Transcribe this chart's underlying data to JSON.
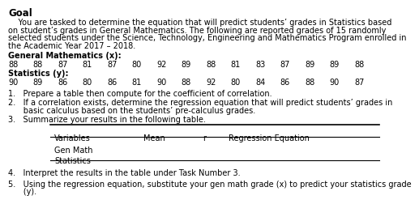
{
  "title": "Goal",
  "para1_indent": "    You are tasked to determine the equation that will predict students’ grades in Statistics based",
  "para1_lines": [
    "    You are tasked to determine the equation that will predict students’ grades in Statistics based",
    "on student’s grades in General Mathematics. The following are reported grades of 15 randomly",
    "selected students under the Science, Technology, Engineering and Mathematics Program enrolled in",
    "the Academic Year 2017 – 2018."
  ],
  "gm_label": "General Mathematics (x):",
  "gm_values": [
    "88",
    "88",
    "87",
    "81",
    "87",
    "80",
    "92",
    "89",
    "88",
    "81",
    "83",
    "87",
    "89",
    "89",
    "88"
  ],
  "stat_label": "Statistics (y):",
  "stat_values": [
    "90",
    "89",
    "86",
    "80",
    "86",
    "81",
    "90",
    "88",
    "92",
    "80",
    "84",
    "86",
    "88",
    "90",
    "87"
  ],
  "item1": "1.   Prepare a table then compute for the coefficient of correlation.",
  "item2a": "2.   If a correlation exists, determine the regression equation that will predict students’ grades in",
  "item2b": "      basic calculus based on the students’ pre-calculus grades.",
  "item3": "3.   Summarize your results in the following table.",
  "table_headers": [
    "Variables",
    "Mean",
    "r",
    "Regression Equation"
  ],
  "table_row1": "Gen Math",
  "table_row2": "Statistics",
  "item4": "4.   Interpret the results in the table under Task Number 3.",
  "item5a": "5.   Using the regression equation, substitute your gen math grade (x) to predict your statistics grade",
  "item5b": "      (y).",
  "bg_color": "#ffffff",
  "text_color": "#000000",
  "font_size": 7.0,
  "title_font_size": 8.5
}
